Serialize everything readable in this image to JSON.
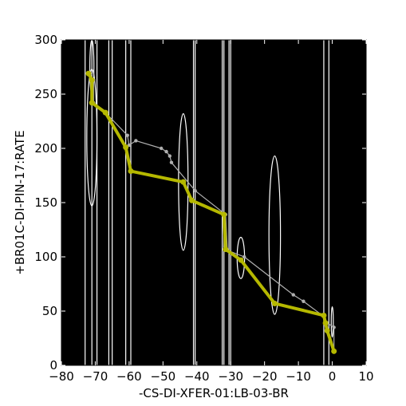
{
  "chart_data": {
    "type": "line",
    "xlabel": "-CS-DI-XFER-01:LB-03-BR",
    "ylabel": "+BR01C-DI-PIN-17:RATE",
    "xlim": [
      -80,
      10
    ],
    "ylim": [
      0,
      300
    ],
    "xticks": [
      "−80",
      "−70",
      "−60",
      "−50",
      "−40",
      "−30",
      "−20",
      "−10",
      "0",
      "10"
    ],
    "yticks": [
      "0",
      "50",
      "100",
      "150",
      "200",
      "250",
      "300"
    ],
    "background": "#000000",
    "grid": false,
    "legend": "none",
    "series": [
      {
        "style": "thick",
        "color": "#b5b800",
        "points": [
          [
            -72,
            269
          ],
          [
            -71,
            263
          ],
          [
            -71,
            242
          ],
          [
            -67,
            233
          ],
          [
            -61,
            201
          ],
          [
            -59.5,
            179
          ],
          [
            -44,
            169
          ],
          [
            -41.5,
            152
          ],
          [
            -32,
            139
          ],
          [
            -31.5,
            107
          ],
          [
            -27,
            97
          ],
          [
            -17,
            57
          ],
          [
            -2.5,
            46
          ],
          [
            -2,
            39
          ],
          [
            -1.5,
            32
          ],
          [
            0.5,
            13
          ]
        ]
      },
      {
        "style": "thin",
        "color": "#b0b0b0",
        "points": [
          [
            -72,
            268
          ],
          [
            -70.5,
            263
          ],
          [
            -70.5,
            242
          ],
          [
            -67,
            233
          ],
          [
            -60.5,
            212
          ],
          [
            -60,
            203
          ],
          [
            -58,
            207
          ],
          [
            -50.5,
            200
          ],
          [
            -49,
            197
          ],
          [
            -48,
            193
          ],
          [
            -47.5,
            187
          ],
          [
            -40.5,
            161
          ],
          [
            -31.5,
            139
          ],
          [
            -31,
            106
          ],
          [
            -26,
            100
          ],
          [
            -11.5,
            65
          ],
          [
            -8.5,
            59
          ],
          [
            -2.5,
            45
          ],
          [
            -1.5,
            39
          ],
          [
            -2,
            40
          ],
          [
            0.5,
            35
          ],
          [
            0.5,
            13
          ]
        ]
      }
    ],
    "vertical_lines": [
      -73,
      -71,
      -69.5,
      -66,
      -65,
      -61,
      -59.5,
      -41,
      -40.5,
      -32.5,
      -32,
      -30.5,
      -30,
      -2.5,
      -1
    ],
    "uncertainty_ellipses": [
      {
        "cx": -71,
        "cy": 210,
        "rx": 1.5,
        "ry": 63
      },
      {
        "cx": -71,
        "cy": 275,
        "rx": 0.6,
        "ry": 25
      },
      {
        "cx": -44,
        "cy": 169,
        "rx": 1.4,
        "ry": 63
      },
      {
        "cx": -27,
        "cy": 99,
        "rx": 1.1,
        "ry": 19
      },
      {
        "cx": -17,
        "cy": 120,
        "rx": 1.7,
        "ry": 73
      },
      {
        "cx": 0,
        "cy": 40,
        "rx": 0.3,
        "ry": 14
      }
    ]
  }
}
